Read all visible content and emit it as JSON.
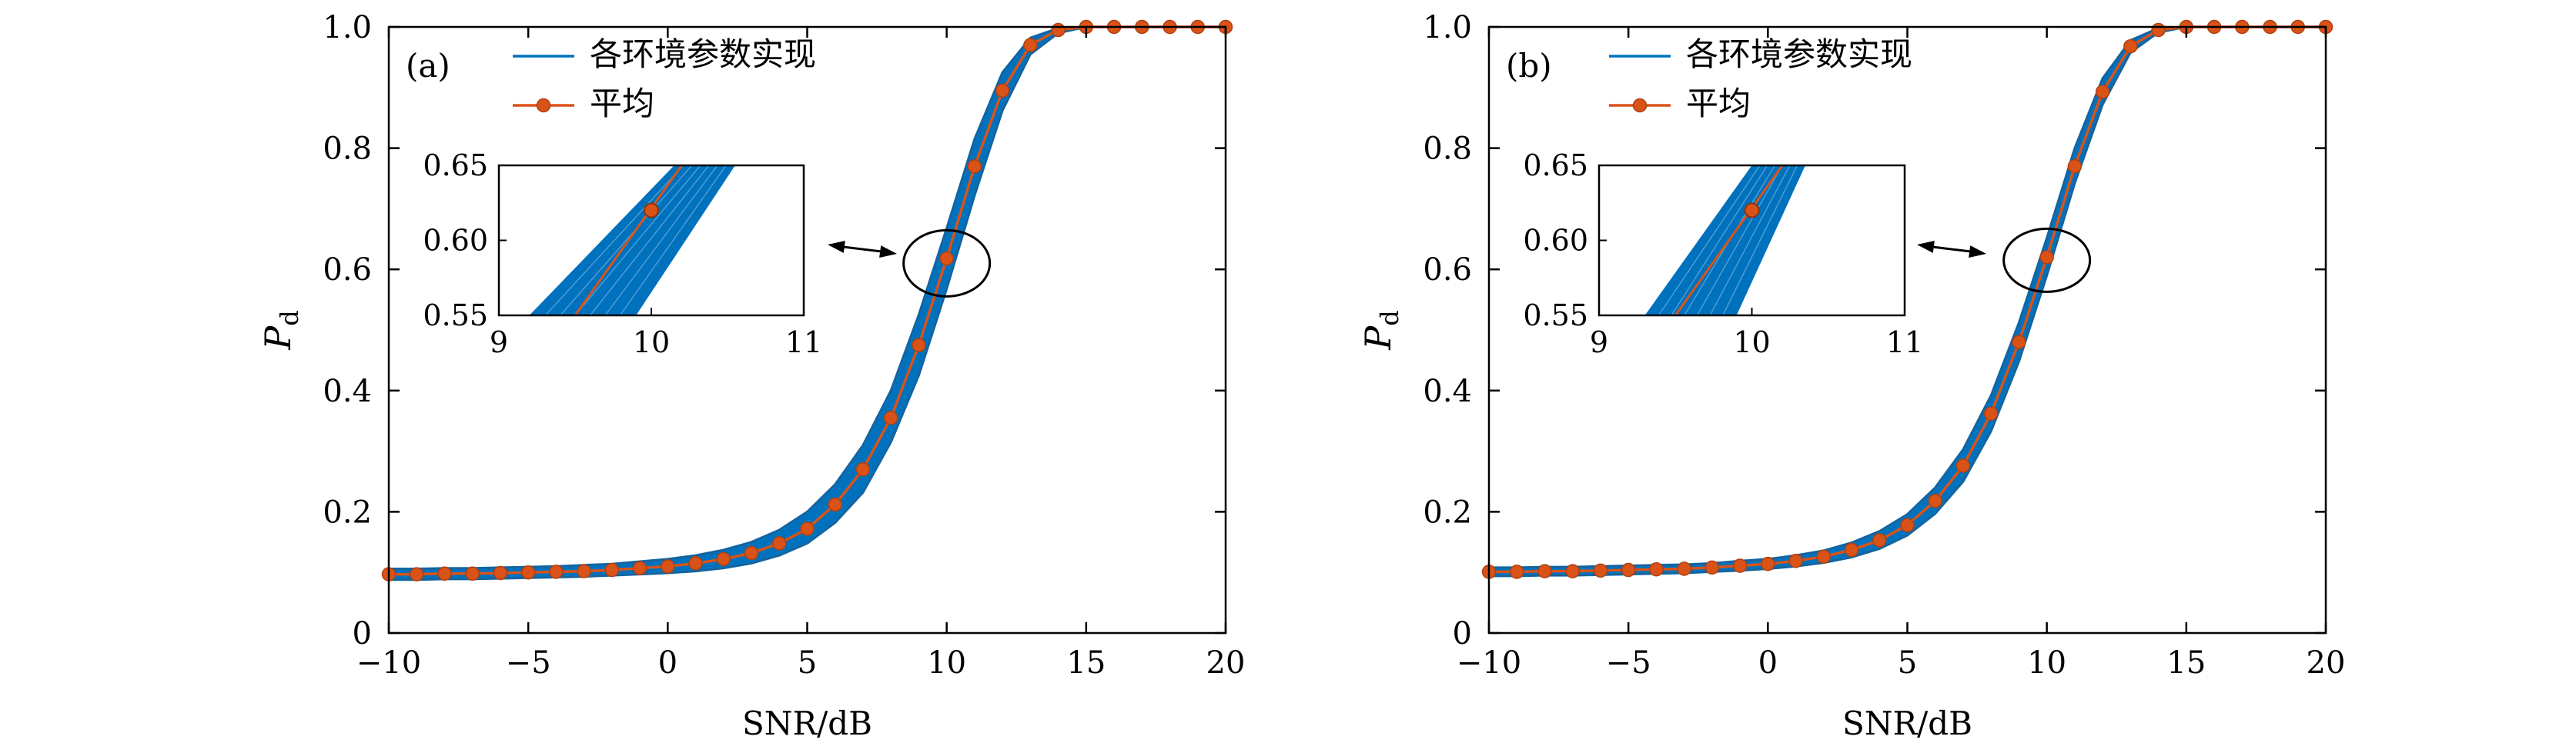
{
  "chart_data": [
    {
      "type": "line",
      "panel_label": "(a)",
      "xlabel": "SNR/dB",
      "ylabel_main": "P",
      "ylabel_sub": "d",
      "xlim": [
        -10,
        20
      ],
      "ylim": [
        0,
        1.0
      ],
      "xticks": [
        -10,
        -5,
        0,
        5,
        10,
        15,
        20
      ],
      "xtick_labels": [
        "−10",
        "−5",
        "0",
        "5",
        "10",
        "15",
        "20"
      ],
      "yticks": [
        0,
        0.2,
        0.4,
        0.6,
        0.8,
        1.0
      ],
      "ytick_labels": [
        "0",
        "0.2",
        "0.4",
        "0.6",
        "0.8",
        "1.0"
      ],
      "grid": false,
      "legend_position": "top-left",
      "legend": [
        {
          "label": "各环境参数实现",
          "series": "realizations"
        },
        {
          "label": "平均",
          "series": "mean"
        }
      ],
      "series": [
        {
          "name": "平均",
          "color": "#d95319",
          "marker": "circle",
          "x": [
            -10,
            -9,
            -8,
            -7,
            -6,
            -5,
            -4,
            -3,
            -2,
            -1,
            0,
            1,
            2,
            3,
            4,
            5,
            6,
            7,
            8,
            9,
            10,
            11,
            12,
            13,
            14,
            15,
            16,
            17,
            18,
            19,
            20
          ],
          "y": [
            0.097,
            0.097,
            0.098,
            0.098,
            0.099,
            0.1,
            0.101,
            0.102,
            0.104,
            0.107,
            0.11,
            0.115,
            0.122,
            0.132,
            0.148,
            0.172,
            0.212,
            0.27,
            0.355,
            0.475,
            0.618,
            0.77,
            0.895,
            0.97,
            0.995,
            1.0,
            1.0,
            1.0,
            1.0,
            1.0,
            1.0
          ]
        },
        {
          "name": "各环境参数实现",
          "color": "#0072bd",
          "band_lower": [
            0.088,
            0.088,
            0.089,
            0.089,
            0.09,
            0.091,
            0.092,
            0.093,
            0.095,
            0.097,
            0.099,
            0.102,
            0.107,
            0.115,
            0.128,
            0.148,
            0.182,
            0.232,
            0.315,
            0.425,
            0.568,
            0.722,
            0.862,
            0.955,
            0.99,
            1.0,
            1.0,
            1.0,
            1.0,
            1.0,
            1.0
          ],
          "band_upper": [
            0.106,
            0.106,
            0.107,
            0.107,
            0.108,
            0.109,
            0.11,
            0.112,
            0.114,
            0.118,
            0.122,
            0.128,
            0.137,
            0.15,
            0.17,
            0.2,
            0.245,
            0.31,
            0.4,
            0.525,
            0.668,
            0.815,
            0.925,
            0.982,
            0.998,
            1.0,
            1.0,
            1.0,
            1.0,
            1.0,
            1.0
          ]
        }
      ],
      "inset": {
        "xlim": [
          9,
          11
        ],
        "ylim": [
          0.55,
          0.65
        ],
        "xticks": [
          9,
          10,
          11
        ],
        "xtick_labels": [
          "9",
          "10",
          "11"
        ],
        "yticks": [
          0.55,
          0.6,
          0.65
        ],
        "ytick_labels": [
          "0.55",
          "0.60",
          "0.65"
        ],
        "band_lower": [
          [
            9.2,
            0.55
          ],
          [
            10.15,
            0.65
          ]
        ],
        "band_upper": [
          [
            9.9,
            0.55
          ],
          [
            10.55,
            0.65
          ]
        ],
        "mean_line": [
          [
            9.5,
            0.55
          ],
          [
            10.2,
            0.65
          ]
        ],
        "mean_marker": [
          10.0,
          0.62
        ],
        "zoom_ellipse_center": [
          10,
          0.61
        ]
      }
    },
    {
      "type": "line",
      "panel_label": "(b)",
      "xlabel": "SNR/dB",
      "ylabel_main": "P",
      "ylabel_sub": "d",
      "xlim": [
        -10,
        20
      ],
      "ylim": [
        0,
        1.0
      ],
      "xticks": [
        -10,
        -5,
        0,
        5,
        10,
        15,
        20
      ],
      "xtick_labels": [
        "−10",
        "−5",
        "0",
        "5",
        "10",
        "15",
        "20"
      ],
      "yticks": [
        0,
        0.2,
        0.4,
        0.6,
        0.8,
        1.0
      ],
      "ytick_labels": [
        "0",
        "0.2",
        "0.4",
        "0.6",
        "0.8",
        "1.0"
      ],
      "grid": false,
      "legend_position": "top-left",
      "legend": [
        {
          "label": "各环境参数实现",
          "series": "realizations"
        },
        {
          "label": "平均",
          "series": "mean"
        }
      ],
      "series": [
        {
          "name": "平均",
          "color": "#d95319",
          "marker": "circle",
          "x": [
            -10,
            -9,
            -8,
            -7,
            -6,
            -5,
            -4,
            -3,
            -2,
            -1,
            0,
            1,
            2,
            3,
            4,
            5,
            6,
            7,
            8,
            9,
            10,
            11,
            12,
            13,
            14,
            15,
            16,
            17,
            18,
            19,
            20
          ],
          "y": [
            0.101,
            0.101,
            0.102,
            0.102,
            0.103,
            0.104,
            0.105,
            0.106,
            0.108,
            0.111,
            0.114,
            0.119,
            0.126,
            0.137,
            0.153,
            0.178,
            0.218,
            0.276,
            0.362,
            0.48,
            0.62,
            0.77,
            0.893,
            0.968,
            0.995,
            1.0,
            1.0,
            1.0,
            1.0,
            1.0,
            1.0
          ]
        },
        {
          "name": "各环境参数实现",
          "color": "#0072bd",
          "band_lower": [
            0.094,
            0.094,
            0.095,
            0.095,
            0.096,
            0.097,
            0.098,
            0.099,
            0.101,
            0.103,
            0.106,
            0.11,
            0.116,
            0.125,
            0.139,
            0.161,
            0.197,
            0.25,
            0.333,
            0.448,
            0.59,
            0.742,
            0.872,
            0.958,
            0.991,
            1.0,
            1.0,
            1.0,
            1.0,
            1.0,
            1.0
          ],
          "band_upper": [
            0.108,
            0.108,
            0.109,
            0.109,
            0.11,
            0.111,
            0.112,
            0.113,
            0.115,
            0.119,
            0.122,
            0.128,
            0.136,
            0.149,
            0.168,
            0.196,
            0.24,
            0.303,
            0.392,
            0.512,
            0.652,
            0.8,
            0.915,
            0.978,
            0.998,
            1.0,
            1.0,
            1.0,
            1.0,
            1.0,
            1.0
          ]
        }
      ],
      "inset": {
        "xlim": [
          9,
          11
        ],
        "ylim": [
          0.55,
          0.65
        ],
        "xticks": [
          9,
          10,
          11
        ],
        "xtick_labels": [
          "9",
          "10",
          "11"
        ],
        "yticks": [
          0.55,
          0.6,
          0.65
        ],
        "ytick_labels": [
          "0.55",
          "0.60",
          "0.65"
        ],
        "band_lower": [
          [
            9.3,
            0.55
          ],
          [
            10.0,
            0.65
          ]
        ],
        "band_upper": [
          [
            9.9,
            0.55
          ],
          [
            10.35,
            0.65
          ]
        ],
        "mean_line": [
          [
            9.5,
            0.55
          ],
          [
            10.2,
            0.65
          ]
        ],
        "mean_marker": [
          10.0,
          0.62
        ],
        "zoom_ellipse_center": [
          10,
          0.615
        ]
      }
    }
  ]
}
